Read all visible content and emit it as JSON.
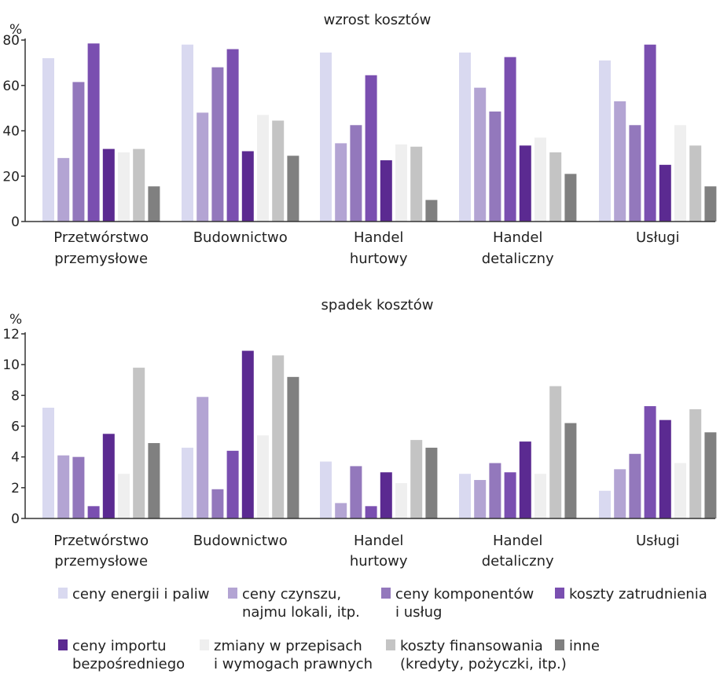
{
  "colors": [
    "#d9d9f0",
    "#b3a4d3",
    "#9378bc",
    "#7a4fb0",
    "#5b2a91",
    "#efefef",
    "#c4c4c4",
    "#808080"
  ],
  "legend": [
    {
      "lines": [
        "ceny energii i paliw"
      ]
    },
    {
      "lines": [
        "ceny czynszu,",
        "najmu lokali, itp."
      ]
    },
    {
      "lines": [
        "ceny komponentów",
        "i usług"
      ]
    },
    {
      "lines": [
        "koszty zatrudnienia"
      ]
    },
    {
      "lines": [
        "ceny importu",
        "bezpośredniego"
      ]
    },
    {
      "lines": [
        "zmiany w przepisach",
        "i wymogach prawnych"
      ]
    },
    {
      "lines": [
        "koszty finansowania",
        "(kredyty, pożyczki, itp.)"
      ]
    },
    {
      "lines": [
        "inne"
      ]
    }
  ],
  "chart_data": [
    {
      "type": "bar",
      "title": "wzrost kosztów",
      "ylabel": "%",
      "ylim": [
        0,
        80
      ],
      "yticks": [
        0,
        20,
        40,
        60,
        80
      ],
      "categories": [
        [
          "Przetwórstwo",
          "przemysłowe"
        ],
        [
          "Budownictwo"
        ],
        [
          "Handel",
          "hurtowy"
        ],
        [
          "Handel",
          "detaliczny"
        ],
        [
          "Usługi"
        ]
      ],
      "series": [
        {
          "name": "ceny energii i paliw",
          "values": [
            72,
            78,
            74.5,
            74.5,
            71
          ]
        },
        {
          "name": "ceny czynszu, najmu lokali, itp.",
          "values": [
            28,
            48,
            34.5,
            59,
            53
          ]
        },
        {
          "name": "ceny komponentów i usług",
          "values": [
            61.5,
            68,
            42.5,
            48.5,
            42.5
          ]
        },
        {
          "name": "koszty zatrudnienia",
          "values": [
            78.5,
            76,
            64.5,
            72.5,
            78
          ]
        },
        {
          "name": "ceny importu bezpośredniego",
          "values": [
            32,
            31,
            27,
            33.5,
            25
          ]
        },
        {
          "name": "zmiany w przepisach i wymogach prawnych",
          "values": [
            30.5,
            47,
            34,
            37,
            42.5
          ]
        },
        {
          "name": "koszty finansowania (kredyty, pożyczki, itp.)",
          "values": [
            32,
            44.5,
            33,
            30.5,
            33.5
          ]
        },
        {
          "name": "inne",
          "values": [
            15.5,
            29,
            9.5,
            21,
            15.5
          ]
        }
      ]
    },
    {
      "type": "bar",
      "title": "spadek kosztów",
      "ylabel": "%",
      "ylim": [
        0,
        12
      ],
      "yticks": [
        0,
        2,
        4,
        6,
        8,
        10,
        12
      ],
      "categories": [
        [
          "Przetwórstwo",
          "przemysłowe"
        ],
        [
          "Budownictwo"
        ],
        [
          "Handel",
          "hurtowy"
        ],
        [
          "Handel",
          "detaliczny"
        ],
        [
          "Usługi"
        ]
      ],
      "series": [
        {
          "name": "ceny energii i paliw",
          "values": [
            7.2,
            4.6,
            3.7,
            2.9,
            1.8
          ]
        },
        {
          "name": "ceny czynszu, najmu lokali, itp.",
          "values": [
            4.1,
            7.9,
            1.0,
            2.5,
            3.2
          ]
        },
        {
          "name": "ceny komponentów i usług",
          "values": [
            4.0,
            1.9,
            3.4,
            3.6,
            4.2
          ]
        },
        {
          "name": "koszty zatrudnienia",
          "values": [
            0.8,
            4.4,
            0.8,
            3.0,
            7.3
          ]
        },
        {
          "name": "ceny importu bezpośredniego",
          "values": [
            5.5,
            10.9,
            3.0,
            5.0,
            6.4
          ]
        },
        {
          "name": "zmiany w przepisach i wymogach prawnych",
          "values": [
            2.9,
            5.4,
            2.3,
            2.9,
            3.6
          ]
        },
        {
          "name": "koszty finansowania (kredyty, pożyczki, itp.)",
          "values": [
            9.8,
            10.6,
            5.1,
            8.6,
            7.1
          ]
        },
        {
          "name": "inne",
          "values": [
            4.9,
            9.2,
            4.6,
            6.2,
            5.6
          ]
        }
      ]
    }
  ]
}
